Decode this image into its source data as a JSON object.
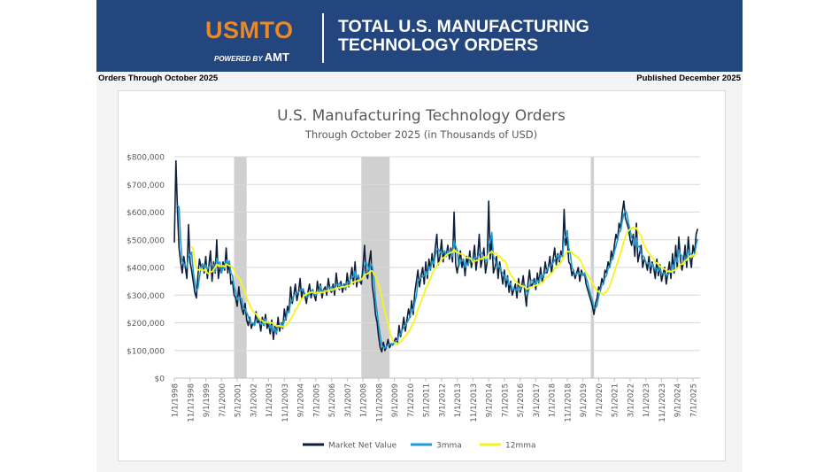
{
  "header": {
    "logo_text": "USMTO",
    "powered_by": "POWERED BY",
    "powered_brand": "AMT",
    "title_line1": "TOTAL U.S. MANUFACTURING",
    "title_line2": "TECHNOLOGY ORDERS",
    "left_note": "Orders Through October 2025",
    "right_note": "Published December 2025"
  },
  "colors": {
    "banner": "#24467e",
    "logo": "#e8892c",
    "market": "#0d1f3c",
    "mma3": "#1f9bd1",
    "mma12": "#f5f51e",
    "recession": "#d0d0d0"
  },
  "chart_data": {
    "type": "line",
    "title": "U.S. Manufacturing Technology Orders",
    "subtitle": "Through October 2025 (in Thousands of USD)",
    "x_start": "1/1/1998",
    "x_end": "10/1/2025",
    "x_frequency": "monthly",
    "x_tick_labels": [
      "1/1/1998",
      "11/1/1998",
      "9/1/1999",
      "7/1/2000",
      "5/1/2001",
      "3/1/2002",
      "1/1/2003",
      "11/1/2003",
      "9/1/2004",
      "7/1/2005",
      "5/1/2006",
      "3/1/2007",
      "1/1/2008",
      "11/1/2008",
      "9/1/2009",
      "7/1/2010",
      "5/1/2011",
      "3/1/2012",
      "1/1/2013",
      "11/1/2013",
      "9/1/2014",
      "7/1/2015",
      "5/1/2016",
      "3/1/2017",
      "1/1/2018",
      "11/1/2018",
      "9/1/2019",
      "7/1/2020",
      "5/1/2021",
      "3/1/2022",
      "1/1/2023",
      "11/1/2023",
      "9/1/2024",
      "7/1/2025"
    ],
    "y_tick_labels": [
      "$0",
      "$100,000",
      "$200,000",
      "$300,000",
      "$400,000",
      "$500,000",
      "$600,000",
      "$700,000",
      "$800,000"
    ],
    "ylim": [
      0,
      800000
    ],
    "grid": "horizontal",
    "legend": "bottom",
    "shaded_periods": [
      [
        "3/1/2001",
        "11/1/2001"
      ],
      [
        "12/1/2007",
        "6/1/2009"
      ],
      [
        "2/1/2020",
        "4/1/2020"
      ]
    ],
    "series": [
      {
        "name": "Market Net Value",
        "values": [
          490000,
          785000,
          600000,
          470000,
          420000,
          380000,
          440000,
          400000,
          360000,
          555000,
          420000,
          390000,
          350000,
          310000,
          290000,
          370000,
          430000,
          400000,
          410000,
          380000,
          440000,
          360000,
          410000,
          460000,
          350000,
          420000,
          380000,
          500000,
          360000,
          400000,
          380000,
          420000,
          390000,
          470000,
          380000,
          420000,
          340000,
          350000,
          300000,
          290000,
          260000,
          330000,
          280000,
          250000,
          230000,
          270000,
          210000,
          190000,
          220000,
          180000,
          200000,
          190000,
          240000,
          200000,
          210000,
          170000,
          220000,
          190000,
          230000,
          180000,
          200000,
          160000,
          210000,
          140000,
          190000,
          160000,
          220000,
          170000,
          200000,
          180000,
          250000,
          210000,
          260000,
          240000,
          330000,
          270000,
          300000,
          340000,
          280000,
          310000,
          360000,
          290000,
          320000,
          300000,
          270000,
          310000,
          340000,
          290000,
          320000,
          300000,
          280000,
          350000,
          310000,
          340000,
          290000,
          320000,
          330000,
          300000,
          360000,
          320000,
          310000,
          340000,
          300000,
          380000,
          330000,
          320000,
          350000,
          310000,
          340000,
          320000,
          380000,
          330000,
          360000,
          400000,
          340000,
          420000,
          330000,
          370000,
          350000,
          340000,
          400000,
          480000,
          380000,
          360000,
          420000,
          460000,
          330000,
          290000,
          230000,
          200000,
          150000,
          110000,
          95000,
          130000,
          100000,
          115000,
          140000,
          110000,
          125000,
          120000,
          135000,
          145000,
          130000,
          190000,
          150000,
          180000,
          220000,
          170000,
          210000,
          250000,
          220000,
          280000,
          230000,
          310000,
          350000,
          390000,
          330000,
          370000,
          400000,
          340000,
          420000,
          360000,
          430000,
          390000,
          450000,
          400000,
          470000,
          520000,
          410000,
          440000,
          500000,
          420000,
          460000,
          440000,
          480000,
          430000,
          470000,
          420000,
          600000,
          410000,
          380000,
          420000,
          460000,
          400000,
          430000,
          370000,
          440000,
          410000,
          460000,
          400000,
          430000,
          480000,
          390000,
          440000,
          520000,
          400000,
          430000,
          470000,
          380000,
          420000,
          640000,
          430000,
          510000,
          380000,
          400000,
          440000,
          360000,
          420000,
          380000,
          340000,
          390000,
          330000,
          370000,
          310000,
          350000,
          300000,
          320000,
          340000,
          290000,
          360000,
          310000,
          330000,
          370000,
          310000,
          260000,
          340000,
          390000,
          330000,
          340000,
          360000,
          320000,
          380000,
          340000,
          400000,
          350000,
          370000,
          420000,
          380000,
          400000,
          440000,
          380000,
          430000,
          470000,
          410000,
          450000,
          420000,
          460000,
          440000,
          610000,
          480000,
          510000,
          420000,
          410000,
          370000,
          390000,
          360000,
          380000,
          400000,
          350000,
          390000,
          370000,
          380000,
          340000,
          320000,
          300000,
          280000,
          260000,
          230000,
          270000,
          290000,
          330000,
          320000,
          360000,
          340000,
          390000,
          380000,
          420000,
          400000,
          460000,
          430000,
          480000,
          520000,
          500000,
          560000,
          540000,
          600000,
          640000,
          580000,
          560000,
          540000,
          500000,
          480000,
          520000,
          440000,
          560000,
          420000,
          450000,
          480000,
          400000,
          430000,
          420000,
          390000,
          440000,
          380000,
          420000,
          400000,
          360000,
          430000,
          370000,
          410000,
          350000,
          380000,
          400000,
          340000,
          380000,
          420000,
          360000,
          450000,
          380000,
          480000,
          400000,
          510000,
          430000,
          390000,
          420000,
          480000,
          400000,
          510000,
          440000,
          400000,
          480000,
          450000,
          520000,
          540000
        ]
      },
      {
        "name": "3mma",
        "derived_from": "Market Net Value",
        "window": 3
      },
      {
        "name": "12mma",
        "derived_from": "Market Net Value",
        "window": 12
      }
    ]
  }
}
